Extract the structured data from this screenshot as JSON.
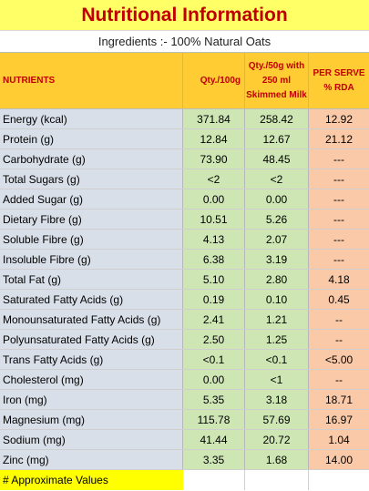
{
  "title": "Nutritional Information",
  "subtitle": "Ingredients :- 100% Natural Oats",
  "headers": {
    "nutrients": "NUTRIENTS",
    "qty100": "Qty./100g",
    "qty50_line1": "Qty./50g with",
    "qty50_line2": "250 ml",
    "qty50_line3": "Skimmed Milk",
    "rda_line1": "PER SERVE",
    "rda_line2": "% RDA"
  },
  "rows": [
    {
      "name": "Energy (kcal)",
      "q100": "371.84",
      "q50": "258.42",
      "rda": "12.92"
    },
    {
      "name": "Protein (g)",
      "q100": "12.84",
      "q50": "12.67",
      "rda": "21.12"
    },
    {
      "name": "Carbohydrate (g)",
      "q100": "73.90",
      "q50": "48.45",
      "rda": "---"
    },
    {
      "name": "Total Sugars (g)",
      "q100": "<2",
      "q50": "<2",
      "rda": "---"
    },
    {
      "name": "Added Sugar (g)",
      "q100": "0.00",
      "q50": "0.00",
      "rda": "---"
    },
    {
      "name": "Dietary Fibre (g)",
      "q100": "10.51",
      "q50": "5.26",
      "rda": "---"
    },
    {
      "name": "Soluble Fibre (g)",
      "q100": "4.13",
      "q50": "2.07",
      "rda": "---"
    },
    {
      "name": "Insoluble Fibre (g)",
      "q100": "6.38",
      "q50": "3.19",
      "rda": "---"
    },
    {
      "name": "Total Fat (g)",
      "q100": "5.10",
      "q50": "2.80",
      "rda": "4.18"
    },
    {
      "name": "Saturated Fatty Acids (g)",
      "q100": "0.19",
      "q50": "0.10",
      "rda": "0.45"
    },
    {
      "name": "Monounsaturated Fatty Acids (g)",
      "q100": "2.41",
      "q50": "1.21",
      "rda": "--"
    },
    {
      "name": "Polyunsaturated Fatty Acids (g)",
      "q100": "2.50",
      "q50": "1.25",
      "rda": "--"
    },
    {
      "name": "Trans Fatty Acids (g)",
      "q100": "<0.1",
      "q50": "<0.1",
      "rda": "<5.00"
    },
    {
      "name": "Cholesterol (mg)",
      "q100": "0.00",
      "q50": "<1",
      "rda": "--"
    },
    {
      "name": "Iron (mg)",
      "q100": "5.35",
      "q50": "3.18",
      "rda": "18.71"
    },
    {
      "name": "Magnesium (mg)",
      "q100": "115.78",
      "q50": "57.69",
      "rda": "16.97"
    },
    {
      "name": "Sodium (mg)",
      "q100": "41.44",
      "q50": "20.72",
      "rda": "1.04"
    },
    {
      "name": "Zinc (mg)",
      "q100": "3.35",
      "q50": "1.68",
      "rda": "14.00"
    }
  ],
  "footnote": "# Approximate Values",
  "colors": {
    "title_bg": "#ffff66",
    "title_text": "#c00000",
    "header_bg": "#ffcc33",
    "name_col_bg": "#d9dfe8",
    "qty_col_bg": "#cde6b4",
    "rda_col_bg": "#f9c9a8",
    "footnote_bg": "#ffff00"
  }
}
